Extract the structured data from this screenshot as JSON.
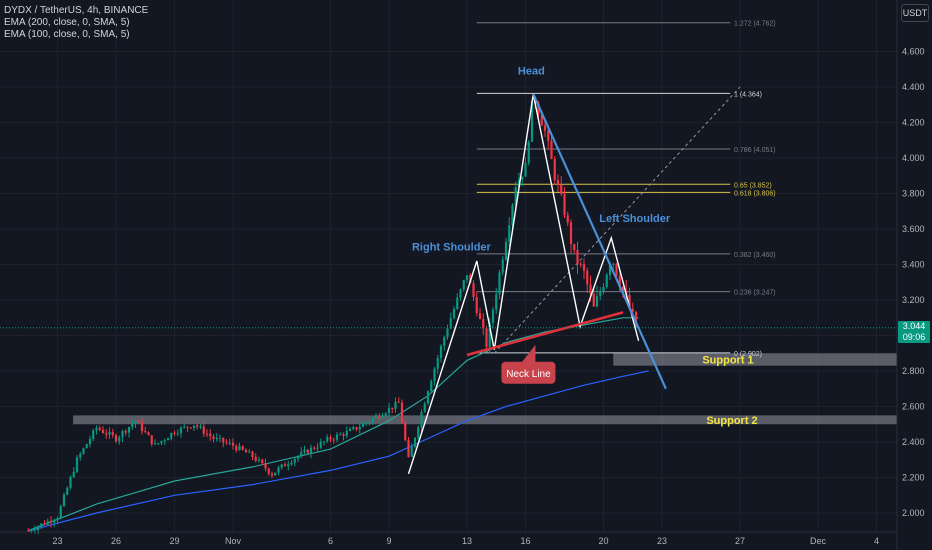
{
  "legend": {
    "symbol": "DYDX / TetherUS, 4h, BINANCE",
    "ema200": "EMA (200, close, 0, SMA, 5)",
    "ema100": "EMA (100, close, 0, SMA, 5)"
  },
  "currency_button": "USDT",
  "last_price": {
    "value": "3.044",
    "countdown": "09:06"
  },
  "colors": {
    "background": "#131722",
    "up": "#089981",
    "down": "#f23645",
    "ema200": "#2962ff",
    "ema100": "#26a69a",
    "pattern_line": "#ffffff",
    "trend_line": "#4a90d9",
    "neck_line": "#e0303a",
    "label_blue": "#4a90d9",
    "support_text": "#f5e642",
    "fib_gold": "#d6c24b",
    "fib_gray": "#787b86"
  },
  "chart_data": {
    "type": "candlestick",
    "ylim": [
      1.95,
      4.85
    ],
    "y_ticks": [
      2.0,
      2.2,
      2.4,
      2.6,
      2.8,
      3.0,
      3.2,
      3.4,
      3.6,
      3.8,
      4.0,
      4.2,
      4.4,
      4.6
    ],
    "y_tick_labels": [
      "2.000",
      "2.200",
      "2.400",
      "2.600",
      "2.800",
      "3.000",
      "3.200",
      "3.400",
      "3.600",
      "3.800",
      "4.000",
      "4.200",
      "4.400",
      "4.600"
    ],
    "x_range_days": [
      -1,
      42
    ],
    "x_ticks": [
      {
        "day": 0,
        "label": "23"
      },
      {
        "day": 3,
        "label": "26"
      },
      {
        "day": 6,
        "label": "29"
      },
      {
        "day": 9,
        "label": "Nov"
      },
      {
        "day": 14,
        "label": "6"
      },
      {
        "day": 17,
        "label": "9"
      },
      {
        "day": 21,
        "label": "13"
      },
      {
        "day": 24,
        "label": "16"
      },
      {
        "day": 28,
        "label": "20"
      },
      {
        "day": 31,
        "label": "23"
      },
      {
        "day": 35,
        "label": "27"
      },
      {
        "day": 39,
        "label": "Dec"
      },
      {
        "day": 42,
        "label": "4"
      }
    ],
    "price_waypoints": [
      [
        -1.5,
        1.9
      ],
      [
        0,
        1.98
      ],
      [
        1,
        2.3
      ],
      [
        2,
        2.48
      ],
      [
        3,
        2.42
      ],
      [
        4,
        2.52
      ],
      [
        5,
        2.38
      ],
      [
        6,
        2.46
      ],
      [
        7,
        2.5
      ],
      [
        8,
        2.42
      ],
      [
        9,
        2.38
      ],
      [
        10,
        2.32
      ],
      [
        11,
        2.22
      ],
      [
        12,
        2.3
      ],
      [
        13,
        2.36
      ],
      [
        14,
        2.42
      ],
      [
        15,
        2.46
      ],
      [
        16,
        2.52
      ],
      [
        17.5,
        2.62
      ],
      [
        18,
        2.3
      ],
      [
        19,
        2.7
      ],
      [
        20,
        3.05
      ],
      [
        21,
        3.35
      ],
      [
        22,
        2.95
      ],
      [
        23,
        3.55
      ],
      [
        23.5,
        3.85
      ],
      [
        24,
        3.95
      ],
      [
        24.4,
        4.36
      ],
      [
        25,
        4.15
      ],
      [
        25.5,
        3.9
      ],
      [
        26,
        3.7
      ],
      [
        26.5,
        3.45
      ],
      [
        27,
        3.35
      ],
      [
        27.5,
        3.15
      ],
      [
        28,
        3.3
      ],
      [
        28.4,
        3.45
      ],
      [
        29,
        3.25
      ],
      [
        29.5,
        3.1
      ],
      [
        29.8,
        3.02
      ]
    ],
    "ema100": [
      [
        -1.5,
        1.9
      ],
      [
        2,
        2.05
      ],
      [
        6,
        2.18
      ],
      [
        10,
        2.26
      ],
      [
        14,
        2.36
      ],
      [
        17,
        2.52
      ],
      [
        19,
        2.66
      ],
      [
        21,
        2.86
      ],
      [
        23,
        2.96
      ],
      [
        25,
        3.02
      ],
      [
        27,
        3.06
      ],
      [
        29,
        3.1
      ],
      [
        29.8,
        3.1
      ]
    ],
    "ema200": [
      [
        -1.5,
        1.9
      ],
      [
        2,
        2.0
      ],
      [
        6,
        2.1
      ],
      [
        10,
        2.16
      ],
      [
        14,
        2.24
      ],
      [
        17,
        2.32
      ],
      [
        19,
        2.42
      ],
      [
        21,
        2.52
      ],
      [
        23,
        2.6
      ],
      [
        25,
        2.66
      ],
      [
        27,
        2.72
      ],
      [
        29,
        2.77
      ],
      [
        30.3,
        2.8
      ]
    ],
    "fibonacci": [
      {
        "ratio_label": "1.272 (4.762)",
        "price": 4.762,
        "color": "gray"
      },
      {
        "ratio_label": "1 (4.364)",
        "price": 4.364,
        "color": "white"
      },
      {
        "ratio_label": "0.786 (4.051)",
        "price": 4.051,
        "color": "gray"
      },
      {
        "ratio_label": "0.65 (3.852)",
        "price": 3.852,
        "color": "gold"
      },
      {
        "ratio_label": "0.618 (3.806)",
        "price": 3.806,
        "color": "gold"
      },
      {
        "ratio_label": "0.382 (3.460)",
        "price": 3.46,
        "color": "gray"
      },
      {
        "ratio_label": "0.236 (3.247)",
        "price": 3.247,
        "color": "gray"
      },
      {
        "ratio_label": "0 (2.902)",
        "price": 2.902,
        "color": "white"
      }
    ],
    "fib_x_range_days": [
      21.5,
      34.5
    ],
    "pattern_polyline": [
      [
        18,
        2.22
      ],
      [
        21.5,
        3.42
      ],
      [
        22.4,
        2.92
      ],
      [
        24.4,
        4.36
      ],
      [
        26.8,
        3.05
      ],
      [
        28.4,
        3.55
      ],
      [
        29.8,
        2.97
      ]
    ],
    "trend_line": [
      [
        24.4,
        4.36
      ],
      [
        31.2,
        2.7
      ]
    ],
    "neck_line": [
      [
        21.0,
        2.89
      ],
      [
        29.0,
        3.13
      ]
    ],
    "fib_diagonal": [
      [
        22.4,
        2.9
      ],
      [
        35.0,
        4.4
      ]
    ],
    "supports": [
      {
        "label": "Support 1",
        "day_start": 28.5,
        "low": 2.83,
        "high": 2.9
      },
      {
        "label": "Support 2",
        "day_start": 0.8,
        "low": 2.5,
        "high": 2.55
      }
    ],
    "labels": [
      {
        "text": "Head",
        "day": 24.3,
        "price": 4.47
      },
      {
        "text": "Right Shoulder",
        "day": 20.2,
        "price": 3.48
      },
      {
        "text": "Left Shoulder",
        "day": 29.6,
        "price": 3.64
      }
    ],
    "neck_callout": {
      "text": "Neck Line",
      "day": 24.1,
      "price": 2.79
    }
  }
}
